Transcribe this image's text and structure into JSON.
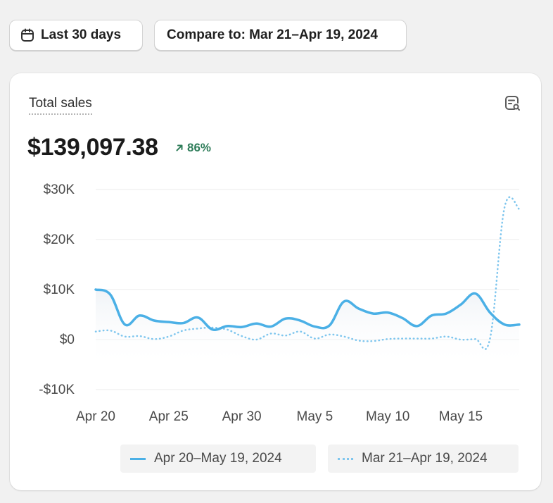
{
  "toolbar": {
    "range_label": "Last 30 days",
    "compare_label": "Compare to: Mar 21–Apr 19, 2024"
  },
  "card": {
    "title": "Total sales",
    "value": "$139,097.38",
    "change": "86%"
  },
  "chart_data": {
    "type": "line",
    "title": "Total sales",
    "xlabel": "",
    "ylabel": "",
    "ylim": [
      -10000,
      30000
    ],
    "yticks": [
      30000,
      20000,
      10000,
      0,
      -10000
    ],
    "ytick_labels": [
      "$30K",
      "$20K",
      "$10K",
      "$0",
      "-$10K"
    ],
    "x_tick_labels": [
      "Apr 20",
      "Apr 25",
      "Apr 30",
      "May 5",
      "May 10",
      "May 15"
    ],
    "x_tick_index": [
      0,
      5,
      10,
      15,
      20,
      25
    ],
    "grid": true,
    "legend_position": "bottom",
    "colors": {
      "current": "#4bb0e6",
      "previous": "#7fc6ee"
    },
    "series": [
      {
        "name": "Apr 20–May 19, 2024",
        "style": "solid",
        "values": [
          10000,
          9000,
          3000,
          4800,
          3800,
          3500,
          3300,
          4400,
          2000,
          2700,
          2500,
          3200,
          2600,
          4200,
          3800,
          2600,
          2800,
          7600,
          6200,
          5200,
          5400,
          4300,
          2700,
          4800,
          5200,
          7000,
          9200,
          5400,
          3000,
          3000
        ]
      },
      {
        "name": "Mar 21–Apr 19, 2024",
        "style": "dotted",
        "values": [
          1600,
          1800,
          600,
          700,
          100,
          600,
          1800,
          2200,
          2400,
          2000,
          700,
          0,
          1200,
          800,
          1600,
          200,
          1000,
          600,
          -200,
          -300,
          100,
          200,
          200,
          200,
          600,
          0,
          100,
          200,
          26500,
          26100
        ]
      }
    ]
  },
  "legend": {
    "current_label": "Apr 20–May 19, 2024",
    "previous_label": "Mar 21–Apr 19, 2024"
  }
}
